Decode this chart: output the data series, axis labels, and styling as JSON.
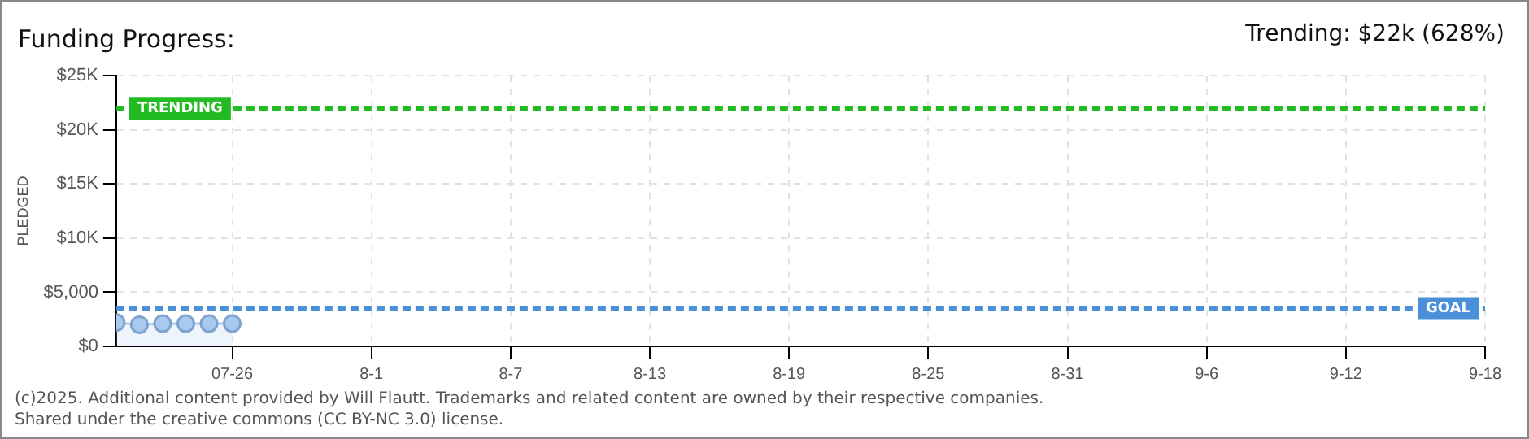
{
  "chart_data": {
    "type": "area",
    "title": "Funding Progress:",
    "subtitle": "Trending: $22k (628%)",
    "ylabel": "PLEDGED",
    "x": [
      "--07-21",
      "--07-22",
      "--07-23",
      "--07-24",
      "--07-25",
      "--07-26"
    ],
    "series": [
      {
        "color": "#a9c9ef",
        "values": [
          2200,
          2000,
          2100,
          2100,
          2100,
          2100
        ]
      }
    ],
    "xlim": [
      "--07-21",
      "--09-18"
    ],
    "xticks": [
      {
        "value": "--07-26",
        "label": "07-26"
      },
      {
        "value": "--08-01",
        "label": "8-1"
      },
      {
        "value": "--08-07",
        "label": "8-7"
      },
      {
        "value": "--08-13",
        "label": "8-13"
      },
      {
        "value": "--08-19",
        "label": "8-19"
      },
      {
        "value": "--08-25",
        "label": "8-25"
      },
      {
        "value": "--08-31",
        "label": "8-31"
      },
      {
        "value": "--09-06",
        "label": "9-6"
      },
      {
        "value": "--09-12",
        "label": "9-12"
      },
      {
        "value": "--09-18",
        "label": "9-18"
      }
    ],
    "ylim": [
      0,
      25000
    ],
    "yticks": [
      {
        "value": 0,
        "label": "$0"
      },
      {
        "value": 5000,
        "label": "$5,000"
      },
      {
        "value": 10000,
        "label": "$10K"
      },
      {
        "value": 15000,
        "label": "$15K"
      },
      {
        "value": 20000,
        "label": "$20K"
      },
      {
        "value": 25000,
        "label": "$25K"
      }
    ],
    "ref_lines": [
      {
        "axis": "y",
        "value": 22000,
        "label": "TRENDING",
        "color": "#22bb22",
        "line_style": "dashed"
      },
      {
        "axis": "y",
        "value": 3500,
        "label": "GOAL",
        "color": "#4a90d9",
        "line_style": "dashed"
      }
    ],
    "annotations": [
      "(c)2025. Additional content provided by Will Flautt. Trademarks and related content are owned by their respective companies.",
      "Shared under the creative commons (CC BY-NC 3.0) license."
    ],
    "grid": true,
    "legend": false,
    "marker": "circle",
    "line_style": "solid"
  }
}
